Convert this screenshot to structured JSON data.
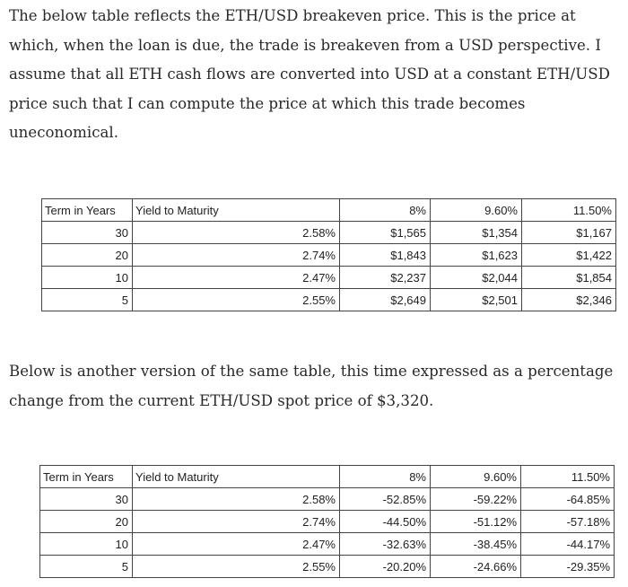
{
  "paragraph_1": "The below table reflects the ETH/USD breakeven price. This is the price at which, when the loan is due, the trade is breakeven from a USD perspective. I assume that all ETH cash flows are converted into USD at a constant ETH/USD price such that I can compute the price at which this trade becomes uneconomical.",
  "table_1": {
    "header": [
      "Term in Years",
      "Yield to Maturity",
      "8%",
      "9.60%",
      "11.50%"
    ],
    "rows": [
      [
        "30",
        "2.58%",
        "$1,565",
        "$1,354",
        "$1,167"
      ],
      [
        "20",
        "2.74%",
        "$1,843",
        "$1,623",
        "$1,422"
      ],
      [
        "10",
        "2.47%",
        "$2,237",
        "$2,044",
        "$1,854"
      ],
      [
        "5",
        "2.55%",
        "$2,649",
        "$2,501",
        "$2,346"
      ]
    ]
  },
  "paragraph_2": "Below is another version of the same table, this time expressed as a percentage change from the current ETH/USD spot price of $3,320.",
  "table_2": {
    "header": [
      "Term in Years",
      "Yield to Maturity",
      "8%",
      "9.60%",
      "11.50%"
    ],
    "rows": [
      [
        "30",
        "2.58%",
        "-52.85%",
        "-59.22%",
        "-64.85%"
      ],
      [
        "20",
        "2.74%",
        "-44.50%",
        "-51.12%",
        "-57.18%"
      ],
      [
        "10",
        "2.47%",
        "-32.63%",
        "-38.45%",
        "-44.17%"
      ],
      [
        "5",
        "2.55%",
        "-20.20%",
        "-24.66%",
        "-29.35%"
      ]
    ]
  }
}
